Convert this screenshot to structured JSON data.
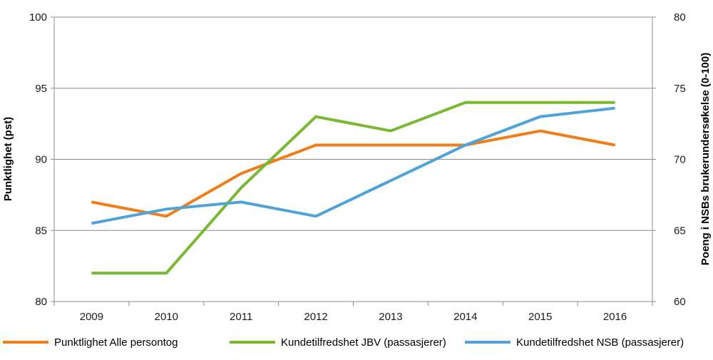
{
  "chart_data": {
    "type": "line",
    "categories": [
      "2009",
      "2010",
      "2011",
      "2012",
      "2013",
      "2014",
      "2015",
      "2016"
    ],
    "ylabel": "Punktlighet (pst)",
    "ylabel_right": "Poeng i NSBs brukerundersøkelse (0-100)",
    "ylim": [
      80,
      100
    ],
    "ylim_right": [
      60,
      80
    ],
    "yticks": [
      "80",
      "85",
      "90",
      "95",
      "100"
    ],
    "yticks_right": [
      "60",
      "65",
      "70",
      "75",
      "80"
    ],
    "grid": true,
    "legend_position": "bottom",
    "series": [
      {
        "name": "Punktlighet Alle persontog",
        "axis": "left",
        "color": "#ef7d1a",
        "values": [
          87,
          86,
          89,
          91,
          91,
          91,
          92,
          91
        ]
      },
      {
        "name": "Kundetilfredshet JBV (passasjerer)",
        "axis": "right",
        "color": "#7ab833",
        "values": [
          62,
          62,
          68,
          73,
          72,
          74,
          74,
          74
        ]
      },
      {
        "name": "Kundetilfredshet NSB (passasjerer)",
        "axis": "right",
        "color": "#4fa3d8",
        "values": [
          65.5,
          66.5,
          67,
          66,
          68.5,
          71,
          73,
          73.6
        ]
      }
    ]
  }
}
